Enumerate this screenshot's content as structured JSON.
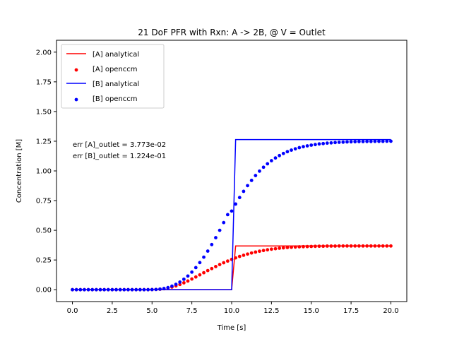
{
  "chart_data": {
    "type": "line",
    "title": "21 DoF PFR with Rxn: A -> 2B, @ V = Outlet",
    "xlabel": "Time [s]",
    "ylabel": "Concentration [M]",
    "xlim": [
      -1.0,
      21.0
    ],
    "ylim": [
      -0.1,
      2.1
    ],
    "xticks": [
      0.0,
      2.5,
      5.0,
      7.5,
      10.0,
      12.5,
      15.0,
      17.5,
      20.0
    ],
    "xtick_labels": [
      "0.0",
      "2.5",
      "5.0",
      "7.5",
      "10.0",
      "12.5",
      "15.0",
      "17.5",
      "20.0"
    ],
    "yticks": [
      0.0,
      0.25,
      0.5,
      0.75,
      1.0,
      1.25,
      1.5,
      1.75,
      2.0
    ],
    "ytick_labels": [
      "0.00",
      "0.25",
      "0.50",
      "0.75",
      "1.00",
      "1.25",
      "1.50",
      "1.75",
      "2.00"
    ],
    "grid": false,
    "legend_position": "top-left",
    "annotations": [
      "err [A]_outlet = 3.773e-02",
      "err [B]_outlet = 1.224e-01"
    ],
    "series": [
      {
        "name": "[A] analytical",
        "kind": "line",
        "color": "#ff0000",
        "x": [
          0.0,
          10.0,
          10.25,
          20.0
        ],
        "y": [
          0.0,
          0.0,
          0.368,
          0.368
        ]
      },
      {
        "name": "[A] openccm",
        "kind": "scatter",
        "color": "#ff0000",
        "x": [
          0.0,
          0.25,
          0.5,
          0.75,
          1.0,
          1.25,
          1.5,
          1.75,
          2.0,
          2.25,
          2.5,
          2.75,
          3.0,
          3.25,
          3.5,
          3.75,
          4.0,
          4.25,
          4.5,
          4.75,
          5.0,
          5.25,
          5.5,
          5.75,
          6.0,
          6.25,
          6.5,
          6.75,
          7.0,
          7.25,
          7.5,
          7.75,
          8.0,
          8.25,
          8.5,
          8.75,
          9.0,
          9.25,
          9.5,
          9.75,
          10.0,
          10.25,
          10.5,
          10.75,
          11.0,
          11.25,
          11.5,
          11.75,
          12.0,
          12.25,
          12.5,
          12.75,
          13.0,
          13.25,
          13.5,
          13.75,
          14.0,
          14.25,
          14.5,
          14.75,
          15.0,
          15.25,
          15.5,
          15.75,
          16.0,
          16.25,
          16.5,
          16.75,
          17.0,
          17.25,
          17.5,
          17.75,
          18.0,
          18.25,
          18.5,
          18.75,
          19.0,
          19.25,
          19.5,
          19.75,
          20.0
        ],
        "y": [
          0.0,
          0.0,
          0.0,
          0.0,
          0.0,
          0.0,
          0.0,
          0.0,
          0.0,
          0.0,
          0.0,
          0.0,
          0.0,
          0.0,
          0.0,
          0.0,
          0.0,
          0.0,
          0.0,
          0.0,
          0.001,
          0.002,
          0.004,
          0.008,
          0.014,
          0.022,
          0.032,
          0.044,
          0.058,
          0.073,
          0.09,
          0.107,
          0.125,
          0.143,
          0.161,
          0.178,
          0.195,
          0.212,
          0.227,
          0.241,
          0.255,
          0.268,
          0.28,
          0.29,
          0.3,
          0.309,
          0.317,
          0.324,
          0.33,
          0.336,
          0.341,
          0.345,
          0.349,
          0.352,
          0.355,
          0.357,
          0.359,
          0.361,
          0.362,
          0.363,
          0.364,
          0.365,
          0.366,
          0.366,
          0.367,
          0.367,
          0.367,
          0.368,
          0.368,
          0.368,
          0.368,
          0.368,
          0.368,
          0.368,
          0.368,
          0.368,
          0.368,
          0.368,
          0.368,
          0.368,
          0.368
        ]
      },
      {
        "name": "[B] analytical",
        "kind": "line",
        "color": "#0000ff",
        "x": [
          0.0,
          10.0,
          10.25,
          20.0
        ],
        "y": [
          0.0,
          0.0,
          1.264,
          1.264
        ]
      },
      {
        "name": "[B] openccm",
        "kind": "scatter",
        "color": "#0000ff",
        "x": [
          0.0,
          0.25,
          0.5,
          0.75,
          1.0,
          1.25,
          1.5,
          1.75,
          2.0,
          2.25,
          2.5,
          2.75,
          3.0,
          3.25,
          3.5,
          3.75,
          4.0,
          4.25,
          4.5,
          4.75,
          5.0,
          5.25,
          5.5,
          5.75,
          6.0,
          6.25,
          6.5,
          6.75,
          7.0,
          7.25,
          7.5,
          7.75,
          8.0,
          8.25,
          8.5,
          8.75,
          9.0,
          9.25,
          9.5,
          9.75,
          10.0,
          10.25,
          10.5,
          10.75,
          11.0,
          11.25,
          11.5,
          11.75,
          12.0,
          12.25,
          12.5,
          12.75,
          13.0,
          13.25,
          13.5,
          13.75,
          14.0,
          14.25,
          14.5,
          14.75,
          15.0,
          15.25,
          15.5,
          15.75,
          16.0,
          16.25,
          16.5,
          16.75,
          17.0,
          17.25,
          17.5,
          17.75,
          18.0,
          18.25,
          18.5,
          18.75,
          19.0,
          19.25,
          19.5,
          19.75,
          20.0
        ],
        "y": [
          0.0,
          0.0,
          0.0,
          0.0,
          0.0,
          0.0,
          0.0,
          0.0,
          0.0,
          0.0,
          0.0,
          0.0,
          0.0,
          0.0,
          0.0,
          0.0,
          0.0,
          0.0,
          0.0,
          0.0,
          0.001,
          0.002,
          0.005,
          0.01,
          0.018,
          0.03,
          0.045,
          0.064,
          0.088,
          0.115,
          0.148,
          0.186,
          0.228,
          0.274,
          0.325,
          0.38,
          0.438,
          0.5,
          0.565,
          0.632,
          0.662,
          0.721,
          0.776,
          0.828,
          0.876,
          0.92,
          0.961,
          0.998,
          1.031,
          1.06,
          1.086,
          1.109,
          1.129,
          1.147,
          1.162,
          1.175,
          1.186,
          1.196,
          1.204,
          1.211,
          1.217,
          1.222,
          1.227,
          1.23,
          1.234,
          1.236,
          1.239,
          1.241,
          1.242,
          1.244,
          1.245,
          1.246,
          1.247,
          1.247,
          1.248,
          1.248,
          1.249,
          1.249,
          1.249,
          1.25,
          1.25
        ]
      }
    ]
  }
}
